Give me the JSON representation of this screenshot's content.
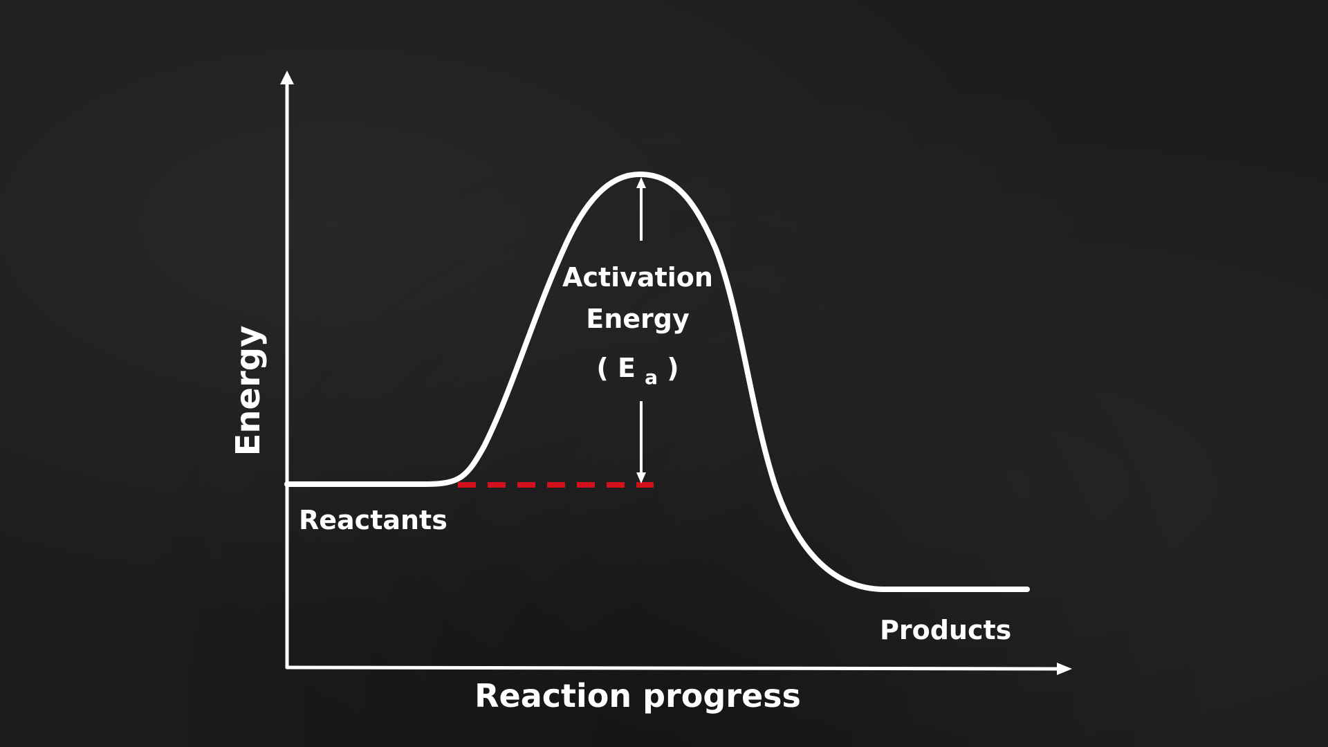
{
  "diagram": {
    "y_axis_label": "Energy",
    "x_axis_label": "Reaction progress",
    "reactants_label": "Reactants",
    "products_label": "Products",
    "activation_label_line1": "Activation",
    "activation_label_line2": "Energy",
    "activation_symbol_open": "(",
    "activation_symbol_letter": "E",
    "activation_symbol_subscript": "a",
    "activation_symbol_close": ")"
  },
  "colors": {
    "background": "#1c1c1c",
    "chalk": "#ffffff",
    "reference_line": "#d0101a"
  }
}
